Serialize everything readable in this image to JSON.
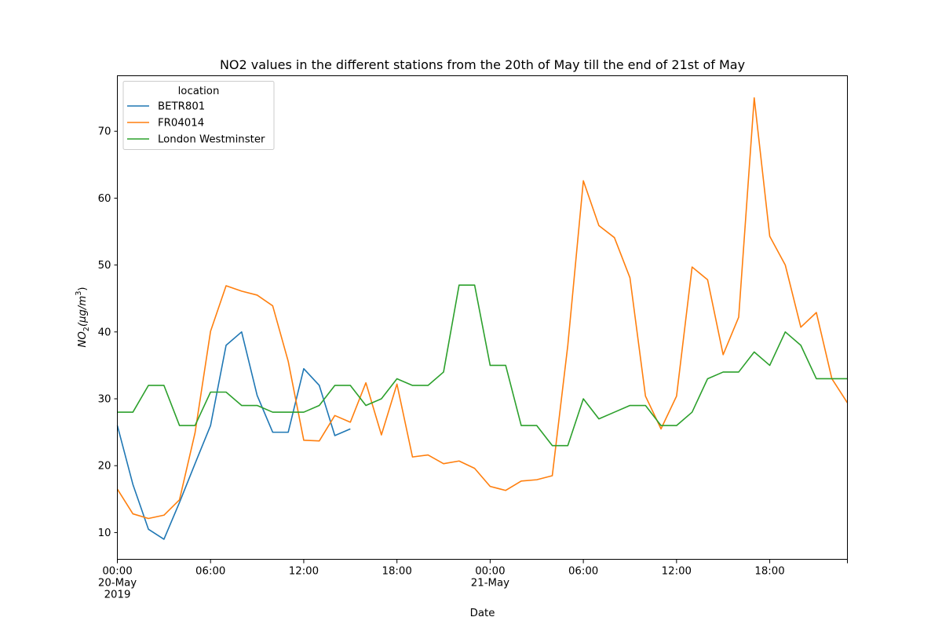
{
  "chart_data": {
    "type": "line",
    "title": "NO2 values in the different stations from the 20th of May till the end of 21st of May",
    "xlabel": "Date",
    "ylabel_main": "NO",
    "ylabel_sub": "2",
    "ylabel_unit": "(μg/m",
    "ylabel_sup": "3",
    "ylabel_close": ")",
    "legend_title": "location",
    "legend_position": "upper-left",
    "grid": false,
    "x_start": "2019-05-20 00:00",
    "x_end": "2019-05-21 23:00",
    "xlim": [
      "2019-05-20 00:00",
      "2019-05-21 23:00"
    ],
    "ylim": [
      6,
      78.3
    ],
    "y_ticks": [
      10,
      20,
      30,
      40,
      50,
      60,
      70
    ],
    "x_ticks": [
      {
        "x": "2019-05-20 00:00",
        "lines": [
          "00:00",
          "20-May",
          "2019"
        ]
      },
      {
        "x": "2019-05-20 06:00",
        "lines": [
          "06:00"
        ]
      },
      {
        "x": "2019-05-20 12:00",
        "lines": [
          "12:00"
        ]
      },
      {
        "x": "2019-05-20 18:00",
        "lines": [
          "18:00"
        ]
      },
      {
        "x": "2019-05-21 00:00",
        "lines": [
          "00:00",
          "21-May"
        ]
      },
      {
        "x": "2019-05-21 06:00",
        "lines": [
          "06:00"
        ]
      },
      {
        "x": "2019-05-21 12:00",
        "lines": [
          "12:00"
        ]
      },
      {
        "x": "2019-05-21 18:00",
        "lines": [
          "18:00"
        ]
      }
    ],
    "series": [
      {
        "name": "BETR801",
        "color": "#1f77b4",
        "x": [
          "2019-05-20 00:00",
          "2019-05-20 01:00",
          "2019-05-20 02:00",
          "2019-05-20 03:00",
          "2019-05-20 04:00",
          "2019-05-20 05:00",
          "2019-05-20 06:00",
          "2019-05-20 07:00",
          "2019-05-20 08:00",
          "2019-05-20 09:00",
          "2019-05-20 10:00",
          "2019-05-20 11:00",
          "2019-05-20 12:00",
          "2019-05-20 13:00",
          "2019-05-20 14:00",
          "2019-05-20 15:00"
        ],
        "values": [
          26.0,
          17.2,
          10.5,
          9.0,
          14.5,
          20.3,
          26.0,
          38.0,
          40.0,
          30.5,
          25.0,
          25.0,
          34.5,
          32.0,
          24.5,
          25.5
        ]
      },
      {
        "name": "FR04014",
        "color": "#ff7f0e",
        "x": [
          "2019-05-20 00:00",
          "2019-05-20 01:00",
          "2019-05-20 02:00",
          "2019-05-20 03:00",
          "2019-05-20 04:00",
          "2019-05-20 05:00",
          "2019-05-20 06:00",
          "2019-05-20 07:00",
          "2019-05-20 08:00",
          "2019-05-20 09:00",
          "2019-05-20 10:00",
          "2019-05-20 11:00",
          "2019-05-20 12:00",
          "2019-05-20 13:00",
          "2019-05-20 14:00",
          "2019-05-20 15:00",
          "2019-05-20 16:00",
          "2019-05-20 17:00",
          "2019-05-20 18:00",
          "2019-05-20 19:00",
          "2019-05-20 20:00",
          "2019-05-20 21:00",
          "2019-05-20 22:00",
          "2019-05-20 23:00",
          "2019-05-21 00:00",
          "2019-05-21 01:00",
          "2019-05-21 02:00",
          "2019-05-21 03:00",
          "2019-05-21 04:00",
          "2019-05-21 05:00",
          "2019-05-21 06:00",
          "2019-05-21 07:00",
          "2019-05-21 08:00",
          "2019-05-21 09:00",
          "2019-05-21 10:00",
          "2019-05-21 11:00",
          "2019-05-21 12:00",
          "2019-05-21 13:00",
          "2019-05-21 14:00",
          "2019-05-21 15:00",
          "2019-05-21 16:00",
          "2019-05-21 17:00",
          "2019-05-21 18:00",
          "2019-05-21 19:00",
          "2019-05-21 20:00",
          "2019-05-21 21:00",
          "2019-05-21 22:00",
          "2019-05-21 23:00"
        ],
        "values": [
          16.5,
          12.8,
          12.1,
          12.6,
          14.9,
          24.9,
          40.1,
          46.9,
          46.1,
          45.5,
          43.9,
          35.6,
          23.8,
          23.7,
          27.5,
          26.5,
          32.4,
          24.6,
          32.2,
          21.3,
          21.6,
          20.3,
          20.7,
          19.6,
          16.9,
          16.3,
          17.7,
          17.9,
          18.5,
          38.0,
          62.6,
          55.9,
          54.1,
          48.1,
          30.4,
          25.5,
          30.4,
          49.7,
          47.8,
          36.6,
          42.2,
          75.0,
          54.3,
          50.0,
          40.7,
          42.9,
          33.0,
          29.4
        ]
      },
      {
        "name": "London Westminster",
        "color": "#2ca02c",
        "x": [
          "2019-05-20 00:00",
          "2019-05-20 01:00",
          "2019-05-20 02:00",
          "2019-05-20 03:00",
          "2019-05-20 04:00",
          "2019-05-20 05:00",
          "2019-05-20 06:00",
          "2019-05-20 07:00",
          "2019-05-20 08:00",
          "2019-05-20 09:00",
          "2019-05-20 10:00",
          "2019-05-20 11:00",
          "2019-05-20 12:00",
          "2019-05-20 13:00",
          "2019-05-20 14:00",
          "2019-05-20 15:00",
          "2019-05-20 16:00",
          "2019-05-20 17:00",
          "2019-05-20 18:00",
          "2019-05-20 19:00",
          "2019-05-20 20:00",
          "2019-05-20 21:00",
          "2019-05-20 22:00",
          "2019-05-20 23:00",
          "2019-05-21 00:00",
          "2019-05-21 01:00",
          "2019-05-21 02:00",
          "2019-05-21 03:00",
          "2019-05-21 04:00",
          "2019-05-21 05:00",
          "2019-05-21 06:00",
          "2019-05-21 07:00",
          "2019-05-21 08:00",
          "2019-05-21 09:00",
          "2019-05-21 10:00",
          "2019-05-21 11:00",
          "2019-05-21 12:00",
          "2019-05-21 13:00",
          "2019-05-21 14:00",
          "2019-05-21 15:00",
          "2019-05-21 16:00",
          "2019-05-21 17:00",
          "2019-05-21 18:00",
          "2019-05-21 19:00",
          "2019-05-21 20:00",
          "2019-05-21 21:00",
          "2019-05-21 22:00",
          "2019-05-21 23:00"
        ],
        "values": [
          28,
          28,
          32,
          32,
          26,
          26,
          31,
          31,
          29,
          29,
          28,
          28,
          28,
          29,
          32,
          32,
          29,
          30,
          33,
          32,
          32,
          34,
          47,
          47,
          35,
          35,
          26,
          26,
          23,
          23,
          30,
          27,
          28,
          29,
          29,
          26,
          26,
          28,
          33,
          34,
          34,
          37,
          35,
          40,
          38,
          33,
          33,
          33
        ]
      }
    ]
  }
}
